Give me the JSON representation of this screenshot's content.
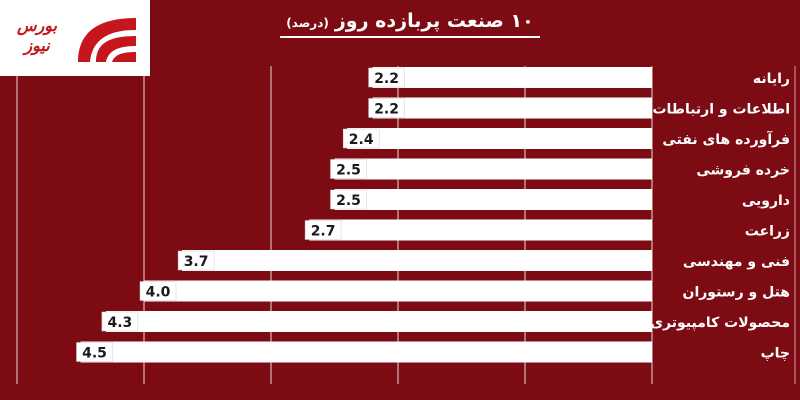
{
  "logo": {
    "text": "بورس نیوز"
  },
  "colors": {
    "background": "#7d0b14",
    "bar": "#ffffff",
    "value_label_box": "#ffffff",
    "grid": "#ffffff",
    "logo_red": "#c4161c"
  },
  "chart_data": {
    "type": "bar",
    "orientation": "horizontal",
    "direction": "right-to-left",
    "title": "۱۰ صنعت پربازده روز",
    "title_unit": "(درصد)",
    "categories": [
      "رایانه",
      "اطلاعات و ارتباطات",
      "فرآورده های نفتی",
      "خرده فروشی",
      "دارویی",
      "زراعت",
      "فنی و مهندسی",
      "هتل و رستوران",
      "محصولات کامپیوتری",
      "چاپ"
    ],
    "values": [
      2.2,
      2.2,
      2.4,
      2.5,
      2.5,
      2.7,
      3.7,
      4.0,
      4.3,
      4.5
    ],
    "value_labels": [
      "2.2",
      "2.2",
      "2.4",
      "2.5",
      "2.5",
      "2.7",
      "3.7",
      "4.0",
      "4.3",
      "4.5"
    ],
    "xlim": [
      0,
      5
    ],
    "grid": true,
    "legend": "none"
  }
}
